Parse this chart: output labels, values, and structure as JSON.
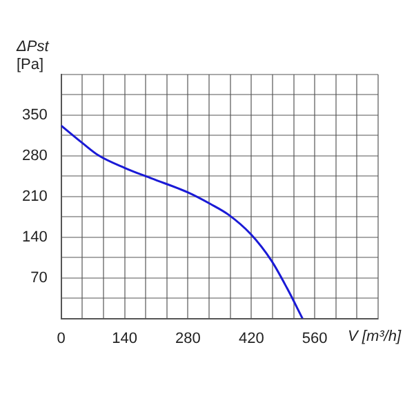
{
  "chart_data": {
    "type": "line",
    "xlabel": "V [m³/h]",
    "ylabel": "ΔPst [Pa]",
    "x": [
      0,
      47,
      82,
      141,
      200,
      280,
      330,
      369,
      419,
      464,
      499,
      533
    ],
    "series": [
      {
        "color": "#1a1ad6",
        "values": [
          332,
          302,
          281,
          259,
          241,
          217,
          197,
          179,
          145,
          100,
          52,
          0
        ]
      }
    ],
    "xlim": [
      0,
      700
    ],
    "xticks": [
      0,
      {
        "value": 46.67,
        "label": null
      },
      {
        "value": 93.33,
        "label": null
      },
      140,
      {
        "value": 186.67,
        "label": null
      },
      {
        "value": 233.33,
        "label": null
      },
      280,
      {
        "value": 326.67,
        "label": null
      },
      {
        "value": 373.33,
        "label": null
      },
      420,
      {
        "value": 466.67,
        "label": null
      },
      {
        "value": 513.33,
        "label": null
      },
      560,
      {
        "value": 606.67,
        "label": null
      },
      {
        "value": 653.33,
        "label": null
      },
      {
        "value": 700,
        "label": null
      }
    ],
    "ylim": [
      0,
      420
    ],
    "yticks": [
      {
        "value": 0,
        "label": null
      },
      {
        "value": 35,
        "label": null
      },
      70,
      {
        "value": 105,
        "label": null
      },
      140,
      {
        "value": 175,
        "label": null
      },
      210,
      {
        "value": 245,
        "label": null
      },
      280,
      {
        "value": 315,
        "label": null
      },
      350,
      {
        "value": 385,
        "label": null
      },
      {
        "value": 420,
        "label": null
      }
    ],
    "grid": true,
    "legend": false,
    "marker": "none",
    "line_style": "solid"
  }
}
